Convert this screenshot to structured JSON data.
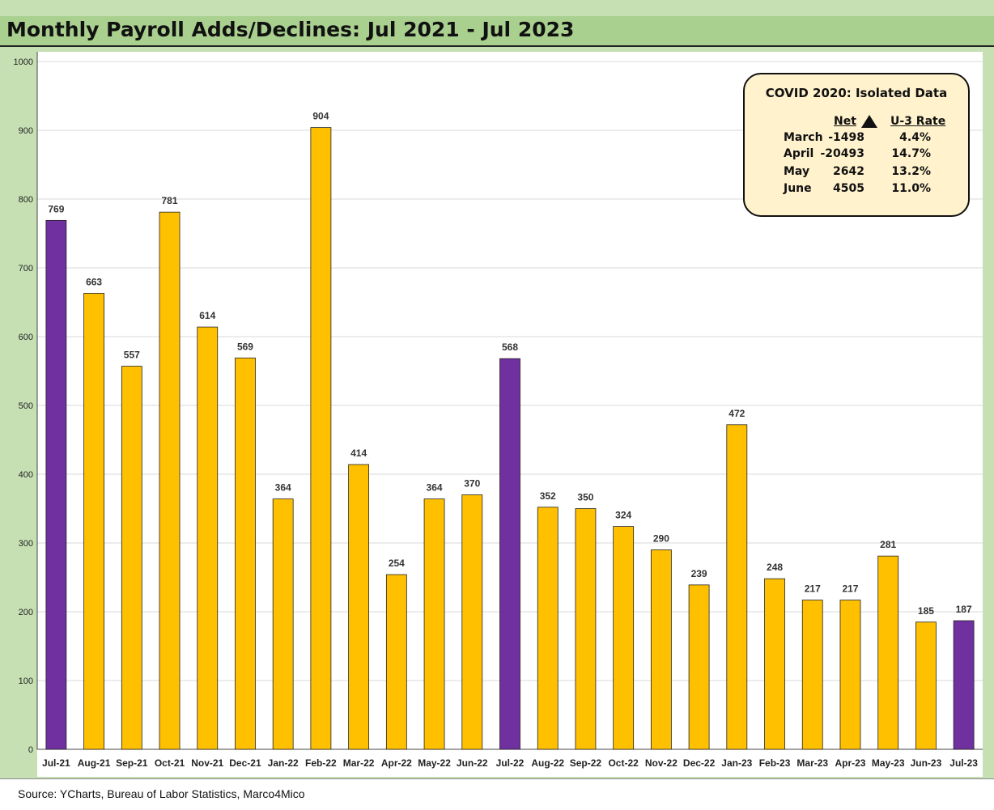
{
  "title": "Monthly Payroll Adds/Declines: Jul 2021 - Jul 2023",
  "source": "Source: YCharts, Bureau of Labor Statistics, Marco4Mico",
  "colors": {
    "highlight": "#7030a0",
    "default": "#ffc000",
    "box_fill": "#fff2cc",
    "frame": "#c6e0b4",
    "title_bar": "#a9d08e"
  },
  "covid_box": {
    "title": "COVID 2020: Isolated Data",
    "headers": {
      "net": "Net",
      "rate": "U-3 Rate"
    },
    "rows": [
      {
        "month": "March",
        "net": "-1498",
        "rate": "4.4%"
      },
      {
        "month": "April",
        "net": "-20493",
        "rate": "14.7%"
      },
      {
        "month": "May",
        "net": "2642",
        "rate": "13.2%"
      },
      {
        "month": "June",
        "net": "4505",
        "rate": "11.0%"
      }
    ]
  },
  "chart_data": {
    "type": "bar",
    "title": "Monthly Payroll Adds/Declines: Jul 2021 - Jul 2023",
    "xlabel": "",
    "ylabel": "",
    "ylim": [
      0,
      1000
    ],
    "yticks": [
      0,
      100,
      200,
      300,
      400,
      500,
      600,
      700,
      800,
      900,
      1000
    ],
    "grid": true,
    "categories": [
      "Jul-21",
      "Aug-21",
      "Sep-21",
      "Oct-21",
      "Nov-21",
      "Dec-21",
      "Jan-22",
      "Feb-22",
      "Mar-22",
      "Apr-22",
      "May-22",
      "Jun-22",
      "Jul-22",
      "Aug-22",
      "Sep-22",
      "Oct-22",
      "Nov-22",
      "Dec-22",
      "Jan-23",
      "Feb-23",
      "Mar-23",
      "Apr-23",
      "May-23",
      "Jun-23",
      "Jul-23"
    ],
    "values": [
      769,
      663,
      557,
      781,
      614,
      569,
      364,
      904,
      414,
      254,
      364,
      370,
      568,
      352,
      350,
      324,
      290,
      239,
      472,
      248,
      217,
      217,
      281,
      185,
      187
    ],
    "highlighted": [
      "Jul-21",
      "Jul-22",
      "Jul-23"
    ]
  }
}
